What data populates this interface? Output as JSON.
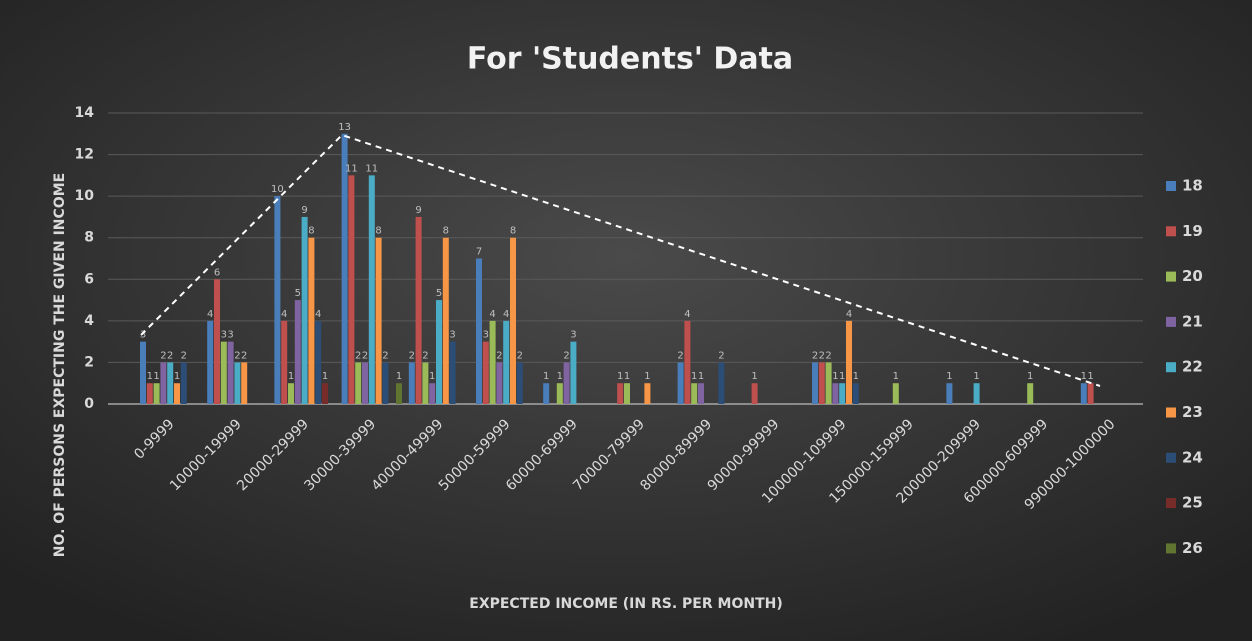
{
  "chart_data": {
    "type": "bar",
    "title": "For 'Students' Data",
    "x_label": "EXPECTED INCOME (IN RS. PER MONTH)",
    "y_label": "NO. OF PERSONS EXPECTING THE GIVEN INCOME",
    "categories": [
      "0-9999",
      "10000-19999",
      "20000-29999",
      "30000-39999",
      "40000-49999",
      "50000-59999",
      "60000-69999",
      "70000-79999",
      "80000-89999",
      "90000-99999",
      "100000-109999",
      "150000-159999",
      "200000-209999",
      "600000-609999",
      "990000-1000000"
    ],
    "series": [
      {
        "name": "18",
        "color": "#4a7ebb",
        "values": [
          3,
          4,
          10,
          13,
          2,
          7,
          1,
          null,
          2,
          null,
          2,
          null,
          1,
          null,
          1
        ]
      },
      {
        "name": "19",
        "color": "#c0504d",
        "values": [
          1,
          6,
          4,
          11,
          9,
          3,
          null,
          1,
          4,
          1,
          2,
          null,
          null,
          null,
          1
        ]
      },
      {
        "name": "20",
        "color": "#9bbb59",
        "values": [
          1,
          3,
          1,
          2,
          2,
          4,
          1,
          1,
          1,
          null,
          2,
          1,
          null,
          1,
          null
        ]
      },
      {
        "name": "21",
        "color": "#8064a2",
        "values": [
          2,
          3,
          5,
          2,
          1,
          2,
          2,
          null,
          1,
          null,
          1,
          null,
          null,
          null,
          null
        ]
      },
      {
        "name": "22",
        "color": "#4bacc6",
        "values": [
          2,
          2,
          9,
          11,
          5,
          4,
          3,
          null,
          null,
          null,
          1,
          null,
          1,
          null,
          null
        ]
      },
      {
        "name": "23",
        "color": "#f79646",
        "values": [
          1,
          2,
          8,
          8,
          8,
          8,
          null,
          1,
          null,
          null,
          4,
          null,
          null,
          null,
          null
        ]
      },
      {
        "name": "24",
        "color": "#2c4d75",
        "values": [
          2,
          null,
          4,
          2,
          3,
          2,
          null,
          null,
          2,
          null,
          1,
          null,
          null,
          null,
          null
        ]
      },
      {
        "name": "25",
        "color": "#772c2a",
        "values": [
          null,
          null,
          1,
          null,
          null,
          null,
          null,
          null,
          null,
          null,
          null,
          null,
          null,
          null,
          null
        ]
      },
      {
        "name": "26",
        "color": "#5f7530",
        "values": [
          null,
          null,
          null,
          1,
          null,
          null,
          null,
          null,
          null,
          null,
          null,
          null,
          null,
          null,
          null
        ]
      }
    ],
    "ylim": [
      0,
      14
    ],
    "yticks": [
      0,
      2,
      4,
      6,
      8,
      10,
      12,
      14
    ],
    "grid": true,
    "legend": "right"
  }
}
